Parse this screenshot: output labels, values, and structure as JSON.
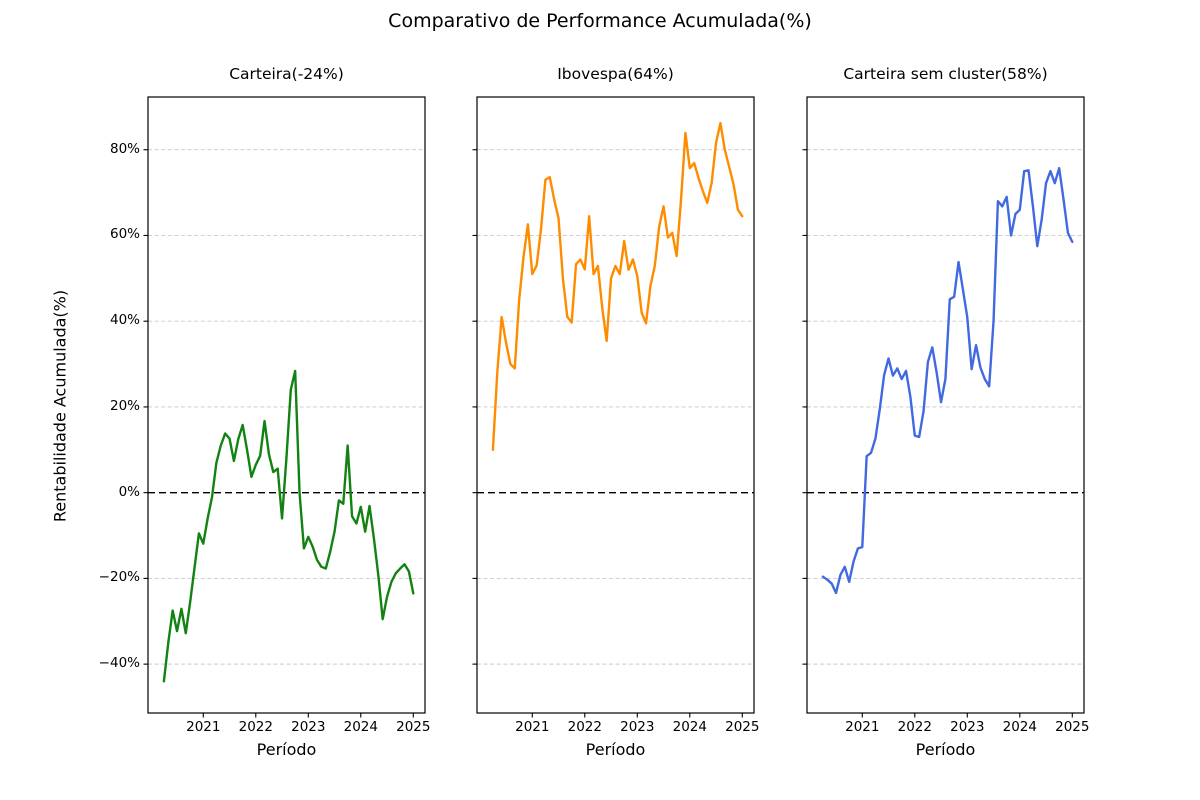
{
  "chart_data": {
    "type": "line",
    "suptitle": "Comparativo de Performance Acumulada(%)",
    "xlabel": "Período",
    "ylabel": "Rentabilidade Acumulada(%)",
    "x_unit": "month",
    "x_start": "2020-04",
    "x_end": "2025-01",
    "n_points": 58,
    "x0_year": 2020.25,
    "xlim_years": [
      2019.947,
      2025.223
    ],
    "ylim": [
      -51.4,
      92.3
    ],
    "grid": {
      "color": "#c9c9c9",
      "style": "dashed",
      "axis": "y"
    },
    "zero_line": {
      "value": 0,
      "color": "#000000",
      "style": "dashed"
    },
    "yticks": [
      {
        "value": 80,
        "label": "80%"
      },
      {
        "value": 60,
        "label": "60%"
      },
      {
        "value": 40,
        "label": "40%"
      },
      {
        "value": 20,
        "label": "20%"
      },
      {
        "value": 0,
        "label": "0%"
      },
      {
        "value": -20,
        "label": "−20%"
      },
      {
        "value": -40,
        "label": "−40%"
      }
    ],
    "xticks": [
      {
        "value": 2021,
        "label": "2021"
      },
      {
        "value": 2022,
        "label": "2022"
      },
      {
        "value": 2023,
        "label": "2023"
      },
      {
        "value": 2024,
        "label": "2024"
      },
      {
        "value": 2025,
        "label": "2025"
      }
    ],
    "series": [
      {
        "name": "Carteira",
        "title": "Carteira(-24%)",
        "final_pct": -24,
        "color": "#128312",
        "values": [
          -44,
          -35,
          -27.5,
          -32.3,
          -27.1,
          -32.8,
          -25.5,
          -17.5,
          -9.5,
          -11.9,
          -6,
          -1,
          7,
          11,
          13.8,
          12.6,
          7.4,
          12.5,
          15.8,
          10,
          3.7,
          6.5,
          8.6,
          16.7,
          9,
          4.8,
          5.6,
          -6,
          8,
          24,
          28.4,
          0,
          -13,
          -10.3,
          -12.6,
          -15.7,
          -17.3,
          -17.7,
          -13.8,
          -9.1,
          -1.8,
          -2.6,
          11,
          -5.5,
          -7.2,
          -3.3,
          -9.1,
          -3.1,
          -10.7,
          -19.2,
          -29.5,
          -24.3,
          -20.8,
          -18.8,
          -17.7,
          -16.7,
          -18.4,
          -23.5
        ]
      },
      {
        "name": "Ibovespa",
        "title": "Ibovespa(64%)",
        "final_pct": 64,
        "color": "#ff8c00",
        "values": [
          10,
          28,
          41,
          35,
          30,
          29,
          45,
          55,
          62.6,
          51,
          53,
          61.5,
          73,
          73.6,
          68.4,
          64,
          50,
          41,
          39.7,
          53.3,
          54.4,
          52.1,
          64.5,
          51,
          52.9,
          43,
          35.4,
          50,
          52.9,
          51,
          58.7,
          52,
          54.4,
          50.5,
          42,
          39.5,
          48.2,
          52.9,
          62,
          66.8,
          59.5,
          60.6,
          55.2,
          68.4,
          83.9,
          75.7,
          76.9,
          73.4,
          70.3,
          67.6,
          72.3,
          81.6,
          86.2,
          80,
          76,
          71.9,
          66,
          64.5
        ]
      },
      {
        "name": "Carteira sem cluster",
        "title": "Carteira sem cluster(58%)",
        "final_pct": 58,
        "color": "#4169e1",
        "values": [
          -19.6,
          -20.3,
          -21.2,
          -23.4,
          -19.2,
          -17.3,
          -20.8,
          -16.1,
          -13,
          -12.7,
          8.5,
          9.3,
          12.6,
          19.5,
          27.5,
          31.3,
          27.3,
          29,
          26.5,
          28.4,
          22.3,
          13.3,
          13,
          19,
          30.5,
          33.9,
          28,
          21.1,
          26.5,
          45.1,
          45.7,
          53.8,
          47.4,
          40.9,
          28.8,
          34.4,
          29.2,
          26.5,
          24.8,
          40,
          68,
          66.8,
          69,
          60,
          65,
          66,
          75,
          75.2,
          66.8,
          57.5,
          63.7,
          72.2,
          75,
          72.2,
          75.7,
          68.4,
          60.6,
          58.5
        ]
      }
    ]
  }
}
